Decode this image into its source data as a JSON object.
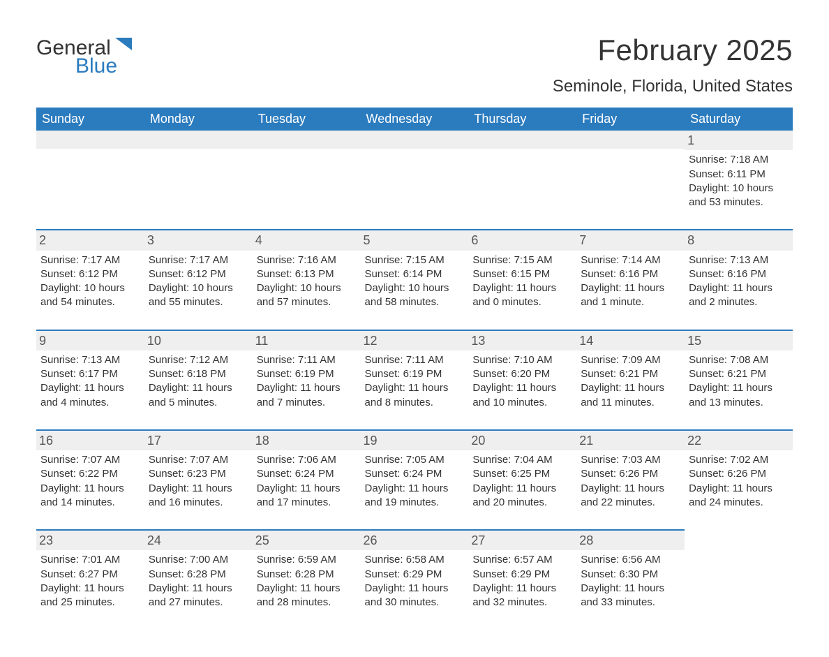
{
  "logo": {
    "word1": "General",
    "word2": "Blue"
  },
  "title": "February 2025",
  "location": "Seminole, Florida, United States",
  "colors": {
    "header_bg": "#2b7bbf",
    "header_fg": "#ffffff",
    "strip_bg": "#efefef",
    "rule": "#2b7bbf",
    "text": "#333333",
    "logo_blue": "#2b7bbf"
  },
  "days_of_week": [
    "Sunday",
    "Monday",
    "Tuesday",
    "Wednesday",
    "Thursday",
    "Friday",
    "Saturday"
  ],
  "labels": {
    "sunrise": "Sunrise:",
    "sunset": "Sunset:",
    "daylight": "Daylight:"
  },
  "weeks": [
    [
      null,
      null,
      null,
      null,
      null,
      null,
      {
        "n": "1",
        "sunrise": "7:18 AM",
        "sunset": "6:11 PM",
        "daylight": "10 hours and 53 minutes."
      }
    ],
    [
      {
        "n": "2",
        "sunrise": "7:17 AM",
        "sunset": "6:12 PM",
        "daylight": "10 hours and 54 minutes."
      },
      {
        "n": "3",
        "sunrise": "7:17 AM",
        "sunset": "6:12 PM",
        "daylight": "10 hours and 55 minutes."
      },
      {
        "n": "4",
        "sunrise": "7:16 AM",
        "sunset": "6:13 PM",
        "daylight": "10 hours and 57 minutes."
      },
      {
        "n": "5",
        "sunrise": "7:15 AM",
        "sunset": "6:14 PM",
        "daylight": "10 hours and 58 minutes."
      },
      {
        "n": "6",
        "sunrise": "7:15 AM",
        "sunset": "6:15 PM",
        "daylight": "11 hours and 0 minutes."
      },
      {
        "n": "7",
        "sunrise": "7:14 AM",
        "sunset": "6:16 PM",
        "daylight": "11 hours and 1 minute."
      },
      {
        "n": "8",
        "sunrise": "7:13 AM",
        "sunset": "6:16 PM",
        "daylight": "11 hours and 2 minutes."
      }
    ],
    [
      {
        "n": "9",
        "sunrise": "7:13 AM",
        "sunset": "6:17 PM",
        "daylight": "11 hours and 4 minutes."
      },
      {
        "n": "10",
        "sunrise": "7:12 AM",
        "sunset": "6:18 PM",
        "daylight": "11 hours and 5 minutes."
      },
      {
        "n": "11",
        "sunrise": "7:11 AM",
        "sunset": "6:19 PM",
        "daylight": "11 hours and 7 minutes."
      },
      {
        "n": "12",
        "sunrise": "7:11 AM",
        "sunset": "6:19 PM",
        "daylight": "11 hours and 8 minutes."
      },
      {
        "n": "13",
        "sunrise": "7:10 AM",
        "sunset": "6:20 PM",
        "daylight": "11 hours and 10 minutes."
      },
      {
        "n": "14",
        "sunrise": "7:09 AM",
        "sunset": "6:21 PM",
        "daylight": "11 hours and 11 minutes."
      },
      {
        "n": "15",
        "sunrise": "7:08 AM",
        "sunset": "6:21 PM",
        "daylight": "11 hours and 13 minutes."
      }
    ],
    [
      {
        "n": "16",
        "sunrise": "7:07 AM",
        "sunset": "6:22 PM",
        "daylight": "11 hours and 14 minutes."
      },
      {
        "n": "17",
        "sunrise": "7:07 AM",
        "sunset": "6:23 PM",
        "daylight": "11 hours and 16 minutes."
      },
      {
        "n": "18",
        "sunrise": "7:06 AM",
        "sunset": "6:24 PM",
        "daylight": "11 hours and 17 minutes."
      },
      {
        "n": "19",
        "sunrise": "7:05 AM",
        "sunset": "6:24 PM",
        "daylight": "11 hours and 19 minutes."
      },
      {
        "n": "20",
        "sunrise": "7:04 AM",
        "sunset": "6:25 PM",
        "daylight": "11 hours and 20 minutes."
      },
      {
        "n": "21",
        "sunrise": "7:03 AM",
        "sunset": "6:26 PM",
        "daylight": "11 hours and 22 minutes."
      },
      {
        "n": "22",
        "sunrise": "7:02 AM",
        "sunset": "6:26 PM",
        "daylight": "11 hours and 24 minutes."
      }
    ],
    [
      {
        "n": "23",
        "sunrise": "7:01 AM",
        "sunset": "6:27 PM",
        "daylight": "11 hours and 25 minutes."
      },
      {
        "n": "24",
        "sunrise": "7:00 AM",
        "sunset": "6:28 PM",
        "daylight": "11 hours and 27 minutes."
      },
      {
        "n": "25",
        "sunrise": "6:59 AM",
        "sunset": "6:28 PM",
        "daylight": "11 hours and 28 minutes."
      },
      {
        "n": "26",
        "sunrise": "6:58 AM",
        "sunset": "6:29 PM",
        "daylight": "11 hours and 30 minutes."
      },
      {
        "n": "27",
        "sunrise": "6:57 AM",
        "sunset": "6:29 PM",
        "daylight": "11 hours and 32 minutes."
      },
      {
        "n": "28",
        "sunrise": "6:56 AM",
        "sunset": "6:30 PM",
        "daylight": "11 hours and 33 minutes."
      },
      null
    ]
  ]
}
